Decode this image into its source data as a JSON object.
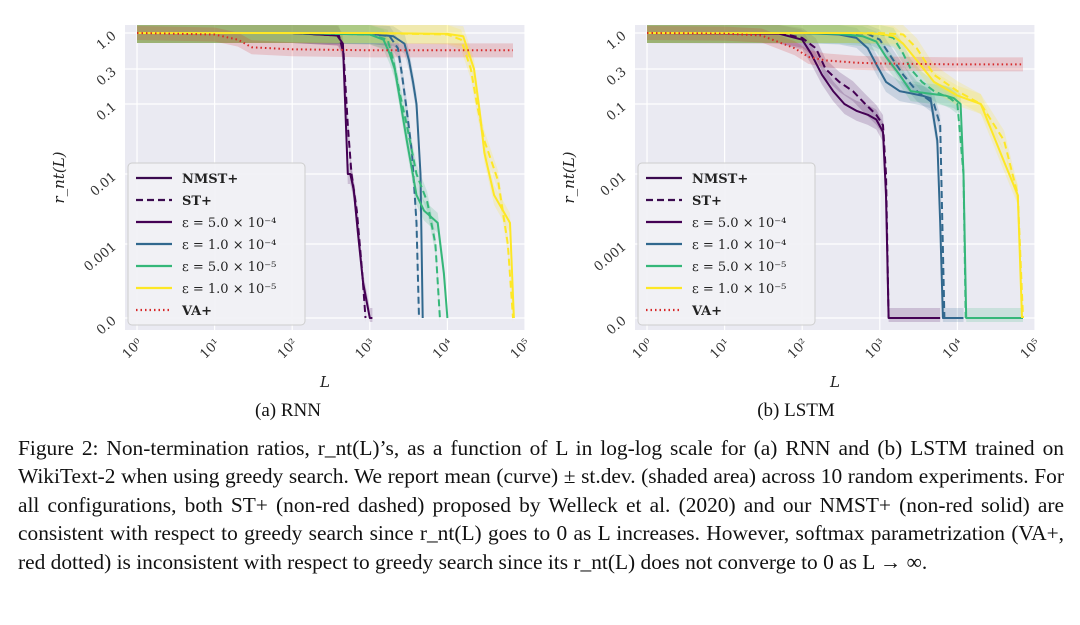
{
  "figure": {
    "caption": "Figure 2: Non-termination ratios, r_nt(L)’s, as a function of L in log-log scale for (a) RNN and (b) LSTM trained on WikiText-2 when using greedy search. We report mean (curve) ± st.dev. (shaded area) across 10 random experiments. For all configurations, both ST+ (non-red dashed) proposed by Welleck et al. (2020) and our NMST+ (non-red solid) are consistent with respect to greedy search since r_nt(L) goes to 0 as L increases. However, softmax parametrization (VA+, red dotted) is inconsistent with respect to greedy search since its r_nt(L) does not converge to 0 as L → ∞."
  },
  "legend": [
    {
      "label": "NMST+",
      "style": "solid",
      "color": "#3b0a4f",
      "bold": true
    },
    {
      "label": "ST+",
      "style": "dashed",
      "color": "#3b0a4f",
      "bold": true
    },
    {
      "label": "ε = 5.0 × 10⁻⁴",
      "style": "solid",
      "color": "#440154"
    },
    {
      "label": "ε = 1.0 × 10⁻⁴",
      "style": "solid",
      "color": "#31688e"
    },
    {
      "label": "ε = 5.0 × 10⁻⁵",
      "style": "solid",
      "color": "#35b779"
    },
    {
      "label": "ε = 1.0 × 10⁻⁵",
      "style": "solid",
      "color": "#fde725"
    },
    {
      "label": "VA+",
      "style": "dotted",
      "color": "#d62728",
      "bold": true
    }
  ],
  "chart_data": [
    {
      "type": "line",
      "subcaption": "(a) RNN",
      "xlabel": "L",
      "ylabel": "r_nt(L)",
      "xscale": "log",
      "yscale": "log",
      "xlim": [
        0.7,
        100000
      ],
      "xticks": [
        1,
        10,
        100,
        1000,
        10000,
        100000
      ],
      "xtick_labels": [
        "10⁰",
        "10¹",
        "10²",
        "10³",
        "10⁴",
        "10⁵"
      ],
      "ytick_labels": [
        "1.0",
        "0.3",
        "0.1",
        "0.01",
        "0.001",
        "0.0"
      ],
      "grid": true,
      "series": [
        {
          "label": "NMST+ ε = 5.0 × 10⁻⁴",
          "color": "#440154",
          "style": "solid",
          "x": [
            1,
            100,
            380,
            450,
            520,
            560,
            620,
            700,
            820,
            1000,
            1080
          ],
          "y": [
            1.0,
            1.0,
            0.92,
            0.7,
            0.01,
            0.01,
            0.006,
            0.0015,
            0.0003,
            0.0,
            0.0
          ]
        },
        {
          "label": "ST+ ε = 5.0 × 10⁻⁴",
          "color": "#440154",
          "style": "dashed",
          "x": [
            1,
            100,
            400,
            460,
            520,
            580,
            680,
            800,
            880
          ],
          "y": [
            1.0,
            1.0,
            0.92,
            0.5,
            0.05,
            0.01,
            0.003,
            0.0004,
            0.0
          ]
        },
        {
          "label": "NMST+ ε = 1.0 × 10⁻⁴",
          "color": "#31688e",
          "style": "solid",
          "x": [
            1,
            100,
            1000,
            2000,
            2800,
            3200,
            3600,
            4000,
            4500,
            4800
          ],
          "y": [
            1.0,
            1.0,
            0.97,
            0.9,
            0.7,
            0.4,
            0.2,
            0.1,
            0.01,
            0.0
          ]
        },
        {
          "label": "ST+ ε = 1.0 × 10⁻⁴",
          "color": "#31688e",
          "style": "dashed",
          "x": [
            1,
            100,
            1000,
            1800,
            2300,
            2600,
            3000,
            3500,
            4000,
            4300
          ],
          "y": [
            1.0,
            1.0,
            0.97,
            0.9,
            0.6,
            0.25,
            0.08,
            0.02,
            0.002,
            0.0
          ]
        },
        {
          "label": "NMST+ ε = 5.0 × 10⁻⁵",
          "color": "#35b779",
          "style": "solid",
          "x": [
            1,
            100,
            1000,
            1500,
            1800,
            2100,
            2500,
            3000,
            4000,
            5000,
            6000,
            7500,
            9000,
            10000
          ],
          "y": [
            1.0,
            1.0,
            0.95,
            0.8,
            0.5,
            0.3,
            0.1,
            0.03,
            0.005,
            0.003,
            0.0025,
            0.002,
            0.0004,
            0.0
          ]
        },
        {
          "label": "ST+ ε = 5.0 × 10⁻⁵",
          "color": "#35b779",
          "style": "dashed",
          "x": [
            1,
            100,
            1000,
            1700,
            2000,
            2400,
            3000,
            4000,
            5500,
            7000,
            8000
          ],
          "y": [
            1.0,
            1.0,
            0.95,
            0.8,
            0.4,
            0.15,
            0.05,
            0.01,
            0.004,
            0.001,
            0.0
          ]
        },
        {
          "label": "NMST+ ε = 1.0 × 10⁻⁵",
          "color": "#fde725",
          "style": "solid",
          "x": [
            1,
            100,
            1000,
            10000,
            16000,
            19000,
            22000,
            26000,
            30000,
            40000,
            52000,
            64000,
            72000
          ],
          "y": [
            1.0,
            1.0,
            1.0,
            0.97,
            0.9,
            0.5,
            0.3,
            0.08,
            0.02,
            0.005,
            0.003,
            0.002,
            0.0
          ]
        },
        {
          "label": "ST+ ε = 1.0 × 10⁻⁵",
          "color": "#fde725",
          "style": "dashed",
          "x": [
            1,
            100,
            1000,
            10000,
            15000,
            20000,
            24000,
            30000,
            45000,
            60000,
            70000
          ],
          "y": [
            1.0,
            1.0,
            1.0,
            0.95,
            0.8,
            0.3,
            0.1,
            0.03,
            0.008,
            0.001,
            0.0
          ]
        },
        {
          "label": "VA+",
          "color": "#d62728",
          "style": "dotted",
          "x": [
            1,
            10,
            20,
            30,
            100,
            1000,
            10000,
            70000
          ],
          "y": [
            1.0,
            0.95,
            0.8,
            0.62,
            0.58,
            0.56,
            0.56,
            0.56
          ]
        }
      ]
    },
    {
      "type": "line",
      "subcaption": "(b) LSTM",
      "xlabel": "L",
      "ylabel": "r_nt(L)",
      "xscale": "log",
      "yscale": "log",
      "xlim": [
        0.7,
        100000
      ],
      "xticks": [
        1,
        10,
        100,
        1000,
        10000,
        100000
      ],
      "xtick_labels": [
        "10⁰",
        "10¹",
        "10²",
        "10³",
        "10⁴",
        "10⁵"
      ],
      "ytick_labels": [
        "1.0",
        "0.3",
        "0.1",
        "0.01",
        "0.001",
        "0.0"
      ],
      "grid": true,
      "series": [
        {
          "label": "NMST+ ε = 5.0 × 10⁻⁴",
          "color": "#440154",
          "style": "solid",
          "x": [
            1,
            50,
            100,
            130,
            180,
            250,
            350,
            500,
            700,
            900,
            1100,
            1200,
            1300,
            2000,
            6000
          ],
          "y": [
            1.0,
            0.98,
            0.8,
            0.5,
            0.25,
            0.15,
            0.1,
            0.08,
            0.07,
            0.06,
            0.04,
            0.005,
            0.0,
            0.0,
            0.0
          ]
        },
        {
          "label": "ST+ ε = 5.0 × 10⁻⁴",
          "color": "#440154",
          "style": "dashed",
          "x": [
            1,
            50,
            100,
            150,
            200,
            300,
            450,
            650,
            900,
            1100,
            1200,
            1300
          ],
          "y": [
            1.0,
            1.0,
            0.85,
            0.6,
            0.3,
            0.2,
            0.15,
            0.1,
            0.07,
            0.05,
            0.01,
            0.0
          ]
        },
        {
          "label": "NMST+ ε = 1.0 × 10⁻⁴",
          "color": "#31688e",
          "style": "solid",
          "x": [
            1,
            100,
            300,
            500,
            700,
            900,
            1200,
            1800,
            2500,
            3500,
            4500,
            5500,
            6000,
            6500,
            12000
          ],
          "y": [
            1.0,
            1.0,
            0.95,
            0.85,
            0.6,
            0.35,
            0.2,
            0.15,
            0.14,
            0.13,
            0.12,
            0.03,
            0.002,
            0.0,
            0.0
          ]
        },
        {
          "label": "ST+ ε = 1.0 × 10⁻⁴",
          "color": "#31688e",
          "style": "dashed",
          "x": [
            1,
            100,
            400,
            700,
            1000,
            1500,
            2000,
            3000,
            4000,
            5000,
            6000,
            6800
          ],
          "y": [
            1.0,
            1.0,
            1.0,
            0.97,
            0.8,
            0.4,
            0.25,
            0.15,
            0.12,
            0.1,
            0.05,
            0.0
          ]
        },
        {
          "label": "NMST+ ε = 5.0 × 10⁻⁵",
          "color": "#35b779",
          "style": "solid",
          "x": [
            1,
            100,
            300,
            600,
            900,
            1200,
            1800,
            2500,
            4000,
            7000,
            9000,
            11000,
            12000,
            13000,
            70000
          ],
          "y": [
            1.0,
            1.0,
            0.97,
            0.9,
            0.75,
            0.45,
            0.25,
            0.15,
            0.14,
            0.13,
            0.12,
            0.1,
            0.01,
            0.0,
            0.0
          ]
        },
        {
          "label": "ST+ ε = 5.0 × 10⁻⁵",
          "color": "#35b779",
          "style": "dashed",
          "x": [
            1,
            100,
            500,
            1000,
            1500,
            2000,
            2500,
            3500,
            5000,
            8000,
            10000,
            12000,
            12800
          ],
          "y": [
            1.0,
            1.0,
            1.0,
            0.97,
            0.85,
            0.5,
            0.3,
            0.2,
            0.15,
            0.12,
            0.1,
            0.01,
            0.0
          ]
        },
        {
          "label": "NMST+ ε = 1.0 × 10⁻⁵",
          "color": "#fde725",
          "style": "solid",
          "x": [
            1,
            100,
            500,
            1000,
            1500,
            2000,
            3000,
            5000,
            10000,
            20000,
            40000,
            60000,
            68000
          ],
          "y": [
            1.0,
            1.0,
            1.0,
            0.97,
            0.9,
            0.7,
            0.4,
            0.2,
            0.13,
            0.1,
            0.015,
            0.005,
            0.0
          ]
        },
        {
          "label": "ST+ ε = 1.0 × 10⁻⁵",
          "color": "#fde725",
          "style": "dashed",
          "x": [
            1,
            100,
            1000,
            2000,
            3000,
            5000,
            10000,
            20000,
            40000,
            60000,
            70000
          ],
          "y": [
            1.0,
            1.0,
            1.0,
            0.95,
            0.6,
            0.25,
            0.15,
            0.1,
            0.03,
            0.005,
            0.0
          ]
        },
        {
          "label": "VA+",
          "color": "#d62728",
          "style": "dotted",
          "x": [
            1,
            10,
            30,
            80,
            120,
            200,
            500,
            1000,
            10000,
            70000
          ],
          "y": [
            1.0,
            0.98,
            0.92,
            0.6,
            0.45,
            0.4,
            0.37,
            0.36,
            0.35,
            0.35
          ]
        }
      ]
    }
  ]
}
